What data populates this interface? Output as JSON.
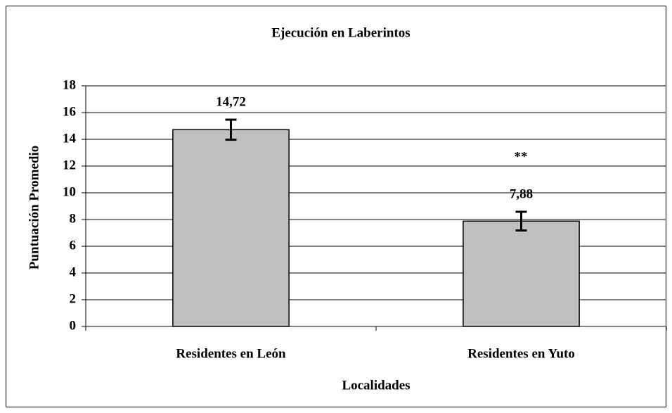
{
  "chart_data": {
    "type": "bar",
    "title": "Ejecución en Laberintos",
    "x_label": "Localidades",
    "y_label": "Puntuación Promedio",
    "categories": [
      "Residentes en León",
      "Residentes en Yuto"
    ],
    "values": [
      14.72,
      7.88
    ],
    "value_labels": [
      "14,72",
      "7,88"
    ],
    "errors": [
      0.75,
      0.7
    ],
    "annotation": "**",
    "color": "#c0c0c0",
    "ylim": [
      0,
      18
    ],
    "yticks": [
      0,
      2,
      4,
      6,
      8,
      10,
      12,
      14,
      16,
      18
    ],
    "grid": true
  }
}
